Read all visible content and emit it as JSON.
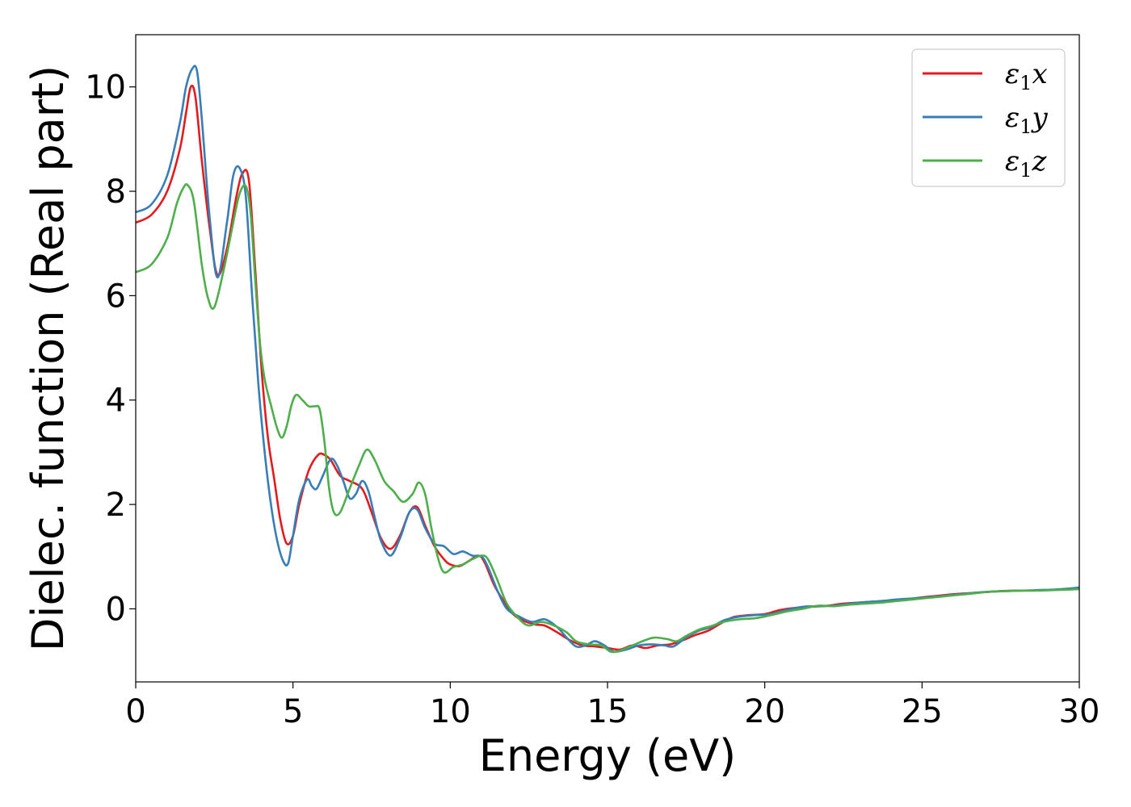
{
  "chart_data": {
    "type": "line",
    "xlabel": "Energy (eV)",
    "ylabel": "Dielec. function (Real part)",
    "xlim": [
      0,
      30
    ],
    "ylim": [
      -1.4,
      11.0
    ],
    "xticks": [
      0,
      5,
      10,
      15,
      20,
      25,
      30
    ],
    "yticks": [
      0,
      2,
      4,
      6,
      8,
      10
    ],
    "grid": false,
    "legend_position": "top-right",
    "series": [
      {
        "name": "ε₁x",
        "legend_base": "ε",
        "legend_sub": "1",
        "legend_var": "x",
        "color": "#e41a1c",
        "x": [
          0,
          0.5,
          1.0,
          1.4,
          1.6,
          1.75,
          1.9,
          2.1,
          2.35,
          2.6,
          2.9,
          3.2,
          3.4,
          3.6,
          3.8,
          4.0,
          4.2,
          4.4,
          4.6,
          4.8,
          5.0,
          5.2,
          5.5,
          5.8,
          6.0,
          6.2,
          6.5,
          6.8,
          7.2,
          7.5,
          7.8,
          8.1,
          8.4,
          8.7,
          8.95,
          9.2,
          9.5,
          9.8,
          10.0,
          10.3,
          10.6,
          10.9,
          11.1,
          11.4,
          11.7,
          12.0,
          12.3,
          12.7,
          13.0,
          13.4,
          13.8,
          14.2,
          14.6,
          15.0,
          15.4,
          15.8,
          16.2,
          16.6,
          17.0,
          17.4,
          17.8,
          18.2,
          18.6,
          19.0,
          19.5,
          20.0,
          20.5,
          21.0,
          21.5,
          22.0,
          22.5,
          23.0,
          23.5,
          24.0,
          24.5,
          25.0,
          25.5,
          26.0,
          26.5,
          27.0,
          27.5,
          28.0,
          28.5,
          29.0,
          29.5,
          30.0
        ],
        "y": [
          7.4,
          7.55,
          8.0,
          8.8,
          9.5,
          10.0,
          9.8,
          8.6,
          7.3,
          6.4,
          6.9,
          7.9,
          8.35,
          8.2,
          6.5,
          4.6,
          3.3,
          2.5,
          1.7,
          1.25,
          1.4,
          2.0,
          2.65,
          2.95,
          2.95,
          2.85,
          2.55,
          2.45,
          2.3,
          1.85,
          1.35,
          1.15,
          1.4,
          1.85,
          1.95,
          1.6,
          1.2,
          0.95,
          0.85,
          0.82,
          0.92,
          1.02,
          0.88,
          0.45,
          0.15,
          -0.1,
          -0.22,
          -0.3,
          -0.32,
          -0.45,
          -0.6,
          -0.7,
          -0.72,
          -0.75,
          -0.78,
          -0.7,
          -0.75,
          -0.7,
          -0.68,
          -0.6,
          -0.5,
          -0.42,
          -0.28,
          -0.16,
          -0.12,
          -0.1,
          -0.02,
          0.02,
          0.04,
          0.06,
          0.1,
          0.12,
          0.14,
          0.16,
          0.18,
          0.22,
          0.25,
          0.28,
          0.3,
          0.32,
          0.34,
          0.35,
          0.35,
          0.36,
          0.37,
          0.38
        ]
      },
      {
        "name": "ε₁y",
        "legend_base": "ε",
        "legend_sub": "1",
        "legend_var": "y",
        "color": "#377eb8",
        "x": [
          0,
          0.5,
          1.0,
          1.4,
          1.6,
          1.8,
          1.95,
          2.1,
          2.35,
          2.6,
          2.9,
          3.1,
          3.3,
          3.5,
          3.7,
          3.9,
          4.1,
          4.3,
          4.5,
          4.7,
          4.85,
          5.0,
          5.2,
          5.45,
          5.6,
          5.75,
          5.95,
          6.2,
          6.4,
          6.6,
          6.8,
          7.0,
          7.2,
          7.4,
          7.6,
          7.8,
          8.1,
          8.4,
          8.7,
          8.95,
          9.2,
          9.5,
          9.8,
          10.1,
          10.4,
          10.7,
          11.0,
          11.2,
          11.5,
          11.8,
          12.2,
          12.6,
          13.0,
          13.4,
          13.7,
          14.0,
          14.3,
          14.6,
          14.9,
          15.2,
          15.6,
          16.0,
          16.4,
          16.8,
          17.1,
          17.5,
          17.9,
          18.3,
          18.7,
          19.2,
          19.7,
          20.2,
          20.7,
          21.2,
          21.7,
          22.2,
          22.7,
          23.2,
          23.7,
          24.2,
          24.7,
          25.2,
          25.7,
          26.2,
          26.7,
          27.2,
          27.7,
          28.2,
          28.7,
          29.2,
          29.7,
          30.0
        ],
        "y": [
          7.6,
          7.75,
          8.3,
          9.3,
          10.0,
          10.35,
          10.3,
          9.4,
          7.5,
          6.35,
          7.4,
          8.3,
          8.45,
          7.9,
          6.0,
          4.3,
          3.0,
          2.0,
          1.3,
          0.9,
          0.88,
          1.4,
          2.1,
          2.48,
          2.35,
          2.3,
          2.55,
          2.87,
          2.75,
          2.45,
          2.12,
          2.2,
          2.45,
          2.25,
          1.75,
          1.3,
          1.02,
          1.35,
          1.85,
          1.9,
          1.55,
          1.25,
          1.2,
          1.05,
          1.1,
          1.02,
          1.0,
          0.8,
          0.35,
          0.0,
          -0.15,
          -0.25,
          -0.2,
          -0.35,
          -0.55,
          -0.72,
          -0.7,
          -0.62,
          -0.7,
          -0.82,
          -0.78,
          -0.7,
          -0.68,
          -0.7,
          -0.72,
          -0.55,
          -0.42,
          -0.35,
          -0.22,
          -0.15,
          -0.12,
          -0.1,
          -0.02,
          0.04,
          0.05,
          0.06,
          0.1,
          0.13,
          0.15,
          0.18,
          0.2,
          0.22,
          0.25,
          0.28,
          0.31,
          0.33,
          0.34,
          0.35,
          0.36,
          0.37,
          0.39,
          0.41
        ]
      },
      {
        "name": "ε₁z",
        "legend_base": "ε",
        "legend_sub": "1",
        "legend_var": "z",
        "color": "#4daf4a",
        "x": [
          0,
          0.5,
          1.0,
          1.3,
          1.5,
          1.65,
          1.85,
          2.1,
          2.3,
          2.5,
          2.8,
          3.1,
          3.3,
          3.5,
          3.65,
          3.8,
          3.95,
          4.1,
          4.3,
          4.5,
          4.65,
          4.8,
          4.95,
          5.1,
          5.3,
          5.5,
          5.7,
          5.85,
          6.0,
          6.15,
          6.3,
          6.5,
          6.8,
          7.1,
          7.35,
          7.6,
          7.9,
          8.2,
          8.5,
          8.8,
          9.0,
          9.2,
          9.4,
          9.6,
          9.8,
          10.1,
          10.4,
          10.7,
          11.0,
          11.2,
          11.5,
          11.8,
          12.2,
          12.5,
          12.9,
          13.3,
          13.7,
          14.0,
          14.4,
          14.8,
          15.1,
          15.4,
          15.8,
          16.2,
          16.5,
          16.9,
          17.2,
          17.5,
          17.9,
          18.3,
          18.7,
          19.2,
          19.7,
          20.2,
          20.7,
          21.2,
          21.7,
          22.2,
          22.7,
          23.2,
          23.7,
          24.2,
          24.7,
          25.2,
          25.7,
          26.2,
          26.7,
          27.2,
          27.7,
          28.2,
          28.7,
          29.2,
          29.7,
          30.0
        ],
        "y": [
          6.45,
          6.6,
          7.1,
          7.75,
          8.05,
          8.12,
          7.8,
          6.6,
          5.95,
          5.78,
          6.5,
          7.4,
          7.95,
          8.1,
          7.6,
          6.3,
          5.1,
          4.4,
          3.9,
          3.45,
          3.28,
          3.5,
          3.9,
          4.1,
          4.0,
          3.88,
          3.88,
          3.82,
          3.2,
          2.3,
          1.85,
          1.85,
          2.3,
          2.75,
          3.05,
          2.85,
          2.45,
          2.25,
          2.05,
          2.2,
          2.42,
          2.2,
          1.55,
          1.0,
          0.7,
          0.8,
          0.85,
          0.95,
          1.02,
          0.95,
          0.55,
          0.1,
          -0.2,
          -0.32,
          -0.25,
          -0.32,
          -0.45,
          -0.62,
          -0.68,
          -0.7,
          -0.82,
          -0.8,
          -0.7,
          -0.6,
          -0.55,
          -0.58,
          -0.62,
          -0.52,
          -0.4,
          -0.33,
          -0.25,
          -0.2,
          -0.18,
          -0.12,
          -0.05,
          0.0,
          0.06,
          0.05,
          0.08,
          0.1,
          0.12,
          0.15,
          0.18,
          0.21,
          0.24,
          0.27,
          0.3,
          0.33,
          0.34,
          0.35,
          0.35,
          0.36,
          0.37,
          0.38
        ]
      }
    ]
  }
}
